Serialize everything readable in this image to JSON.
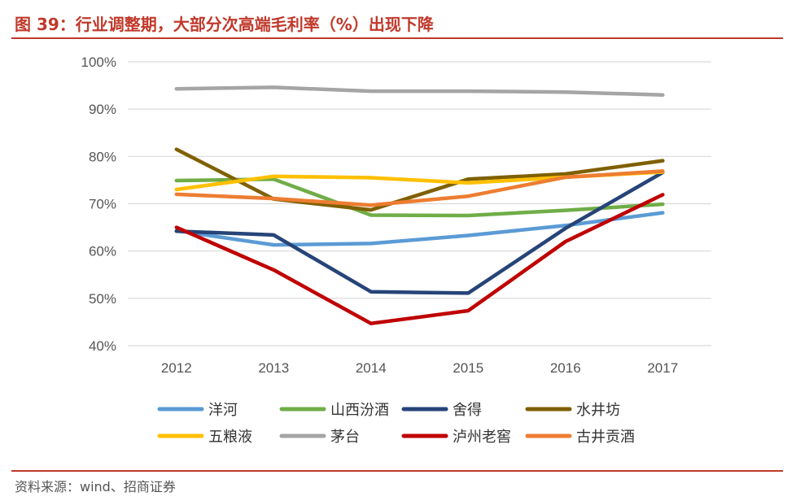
{
  "title": "图 39：行业调整期，大部分次高端毛利率（%）出现下降",
  "source": "资料来源：wind、招商证券",
  "colors": {
    "accent": "#C0392B",
    "grid": "#D9D9D9",
    "tick": "#555555"
  },
  "chart_data": {
    "type": "line",
    "title": "图 39：行业调整期，大部分次高端毛利率（%）出现下降",
    "xlabel": "",
    "ylabel": "",
    "categories": [
      "2012",
      "2013",
      "2014",
      "2015",
      "2016",
      "2017"
    ],
    "ylim": [
      40,
      100
    ],
    "yticks": [
      40,
      50,
      60,
      70,
      80,
      90,
      100
    ],
    "ytick_labels": [
      "40%",
      "50%",
      "60%",
      "70%",
      "80%",
      "90%",
      "100%"
    ],
    "grid": "horizontal",
    "legend_position": "bottom",
    "series": [
      {
        "name": "洋河",
        "color": "#5B9BD5",
        "values": [
          64.3,
          61.3,
          61.6,
          63.3,
          65.4,
          68.1
        ]
      },
      {
        "name": "山西汾酒",
        "color": "#70AD47",
        "values": [
          74.9,
          75.2,
          67.6,
          67.5,
          68.6,
          69.9
        ]
      },
      {
        "name": "舍得",
        "color": "#264478",
        "values": [
          64.2,
          63.4,
          51.4,
          51.1,
          64.8,
          76.6
        ]
      },
      {
        "name": "水井坊",
        "color": "#7F6000",
        "values": [
          81.5,
          71.0,
          68.7,
          75.2,
          76.3,
          79.1
        ]
      },
      {
        "name": "五粮液",
        "color": "#FFC000",
        "values": [
          73.0,
          75.8,
          75.5,
          74.4,
          75.6,
          76.7
        ]
      },
      {
        "name": "茅台",
        "color": "#A5A5A5",
        "values": [
          94.3,
          94.6,
          93.8,
          93.8,
          93.6,
          93.0
        ]
      },
      {
        "name": "泸州老窖",
        "color": "#C00000",
        "values": [
          65.0,
          56.0,
          44.7,
          47.4,
          62.0,
          71.9
        ]
      },
      {
        "name": "古井贡酒",
        "color": "#ED7D31",
        "values": [
          72.0,
          71.1,
          69.7,
          71.6,
          75.6,
          76.9
        ]
      }
    ]
  }
}
